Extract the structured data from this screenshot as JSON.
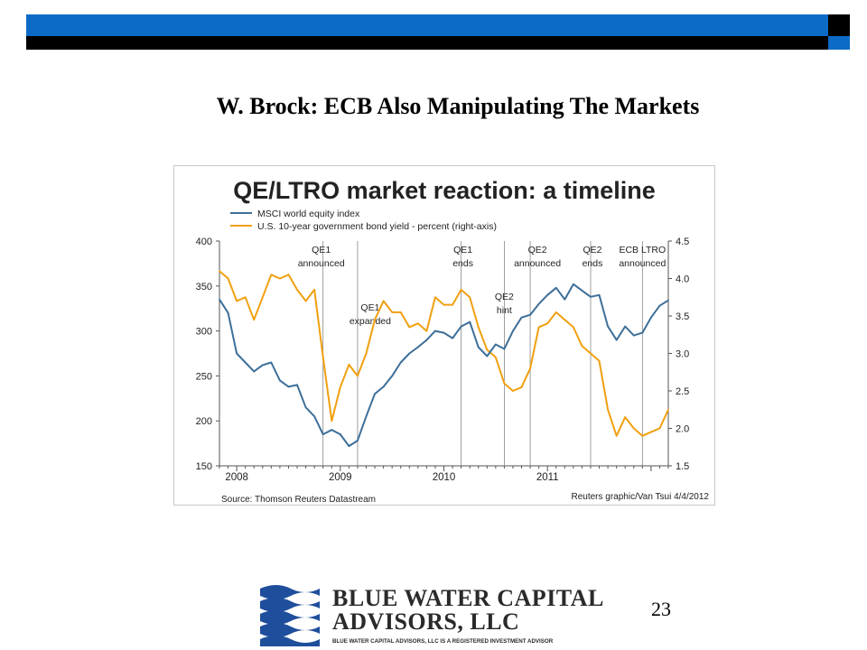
{
  "slide": {
    "title": "W. Brock: ECB Also Manipulating The Markets",
    "page_number": "23",
    "header_colors": {
      "blue": "#0c6bc6",
      "black": "#000000"
    }
  },
  "logo": {
    "line1": "BLUE WATER CAPITAL",
    "line2": "ADVISORS, LLC",
    "tagline": "BLUE WATER CAPITAL ADVISORS, LLC IS A REGISTERED INVESTMENT ADVISOR",
    "color": "#1f4e9c"
  },
  "chart_data": {
    "type": "line",
    "title": "QE/LTRO market reaction: a timeline",
    "source": "Source: Thomson Reuters Datastream",
    "credit": "Reuters graphic/Van Tsui 4/4/2012",
    "x_range": [
      "2007-11",
      "2012-03"
    ],
    "x_ticks": [
      "2008",
      "2009",
      "2010",
      "2011"
    ],
    "y_left": {
      "min": 150,
      "max": 400,
      "ticks": [
        "400",
        "350",
        "300",
        "250",
        "200",
        "150"
      ]
    },
    "y_right": {
      "min": 1.5,
      "max": 4.5,
      "ticks": [
        "4.5",
        "4.0",
        "3.5",
        "3.0",
        "2.5",
        "2.0",
        "1.5"
      ]
    },
    "series": [
      {
        "name": "MSCI world equity index",
        "axis": "left",
        "color": "#3d6f99",
        "points": [
          [
            "2007-11",
            335
          ],
          [
            "2007-12",
            320
          ],
          [
            "2008-01",
            275
          ],
          [
            "2008-02",
            265
          ],
          [
            "2008-03",
            255
          ],
          [
            "2008-04",
            262
          ],
          [
            "2008-05",
            265
          ],
          [
            "2008-06",
            245
          ],
          [
            "2008-07",
            238
          ],
          [
            "2008-08",
            240
          ],
          [
            "2008-09",
            215
          ],
          [
            "2008-10",
            205
          ],
          [
            "2008-11",
            185
          ],
          [
            "2008-12",
            190
          ],
          [
            "2009-01",
            185
          ],
          [
            "2009-02",
            172
          ],
          [
            "2009-03",
            178
          ],
          [
            "2009-04",
            205
          ],
          [
            "2009-05",
            230
          ],
          [
            "2009-06",
            238
          ],
          [
            "2009-07",
            250
          ],
          [
            "2009-08",
            265
          ],
          [
            "2009-09",
            275
          ],
          [
            "2009-10",
            282
          ],
          [
            "2009-11",
            290
          ],
          [
            "2009-12",
            300
          ],
          [
            "2010-01",
            298
          ],
          [
            "2010-02",
            292
          ],
          [
            "2010-03",
            305
          ],
          [
            "2010-04",
            310
          ],
          [
            "2010-05",
            282
          ],
          [
            "2010-06",
            272
          ],
          [
            "2010-07",
            285
          ],
          [
            "2010-08",
            280
          ],
          [
            "2010-09",
            300
          ],
          [
            "2010-10",
            315
          ],
          [
            "2010-11",
            318
          ],
          [
            "2010-12",
            330
          ],
          [
            "2011-01",
            340
          ],
          [
            "2011-02",
            348
          ],
          [
            "2011-03",
            335
          ],
          [
            "2011-04",
            352
          ],
          [
            "2011-05",
            345
          ],
          [
            "2011-06",
            338
          ],
          [
            "2011-07",
            340
          ],
          [
            "2011-08",
            305
          ],
          [
            "2011-09",
            290
          ],
          [
            "2011-10",
            305
          ],
          [
            "2011-11",
            295
          ],
          [
            "2011-12",
            298
          ],
          [
            "2012-01",
            315
          ],
          [
            "2012-02",
            328
          ],
          [
            "2012-03",
            334
          ]
        ]
      },
      {
        "name": "U.S. 10-year government bond yield - percent (right-axis)",
        "axis": "right",
        "color": "#f0a010",
        "points": [
          [
            "2007-11",
            4.1
          ],
          [
            "2007-12",
            4.0
          ],
          [
            "2008-01",
            3.7
          ],
          [
            "2008-02",
            3.75
          ],
          [
            "2008-03",
            3.45
          ],
          [
            "2008-04",
            3.75
          ],
          [
            "2008-05",
            4.05
          ],
          [
            "2008-06",
            4.0
          ],
          [
            "2008-07",
            4.05
          ],
          [
            "2008-08",
            3.85
          ],
          [
            "2008-09",
            3.7
          ],
          [
            "2008-10",
            3.85
          ],
          [
            "2008-11",
            2.95
          ],
          [
            "2008-12",
            2.1
          ],
          [
            "2009-01",
            2.55
          ],
          [
            "2009-02",
            2.85
          ],
          [
            "2009-03",
            2.7
          ],
          [
            "2009-04",
            3.0
          ],
          [
            "2009-05",
            3.45
          ],
          [
            "2009-06",
            3.7
          ],
          [
            "2009-07",
            3.55
          ],
          [
            "2009-08",
            3.55
          ],
          [
            "2009-09",
            3.35
          ],
          [
            "2009-10",
            3.4
          ],
          [
            "2009-11",
            3.3
          ],
          [
            "2009-12",
            3.75
          ],
          [
            "2010-01",
            3.65
          ],
          [
            "2010-02",
            3.65
          ],
          [
            "2010-03",
            3.85
          ],
          [
            "2010-04",
            3.75
          ],
          [
            "2010-05",
            3.35
          ],
          [
            "2010-06",
            3.05
          ],
          [
            "2010-07",
            2.95
          ],
          [
            "2010-08",
            2.6
          ],
          [
            "2010-09",
            2.5
          ],
          [
            "2010-10",
            2.55
          ],
          [
            "2010-11",
            2.8
          ],
          [
            "2010-12",
            3.35
          ],
          [
            "2011-01",
            3.4
          ],
          [
            "2011-02",
            3.55
          ],
          [
            "2011-03",
            3.45
          ],
          [
            "2011-04",
            3.35
          ],
          [
            "2011-05",
            3.1
          ],
          [
            "2011-06",
            3.0
          ],
          [
            "2011-07",
            2.9
          ],
          [
            "2011-08",
            2.25
          ],
          [
            "2011-09",
            1.9
          ],
          [
            "2011-10",
            2.15
          ],
          [
            "2011-11",
            2.0
          ],
          [
            "2011-12",
            1.9
          ],
          [
            "2012-01",
            1.95
          ],
          [
            "2012-02",
            2.0
          ],
          [
            "2012-03",
            2.25
          ]
        ]
      }
    ],
    "events": [
      {
        "date": "2008-11",
        "label1": "QE1",
        "label2": "announced"
      },
      {
        "date": "2009-03",
        "label1": "QE1",
        "label2": "expanded"
      },
      {
        "date": "2010-03",
        "label1": "QE1",
        "label2": "ends"
      },
      {
        "date": "2010-08",
        "label1": "QE2",
        "label2": "hint"
      },
      {
        "date": "2010-11",
        "label1": "QE2",
        "label2": "announced"
      },
      {
        "date": "2011-06",
        "label1": "QE2",
        "label2": "ends"
      },
      {
        "date": "2011-12",
        "label1": "ECB LTRO",
        "label2": "announced"
      }
    ]
  }
}
